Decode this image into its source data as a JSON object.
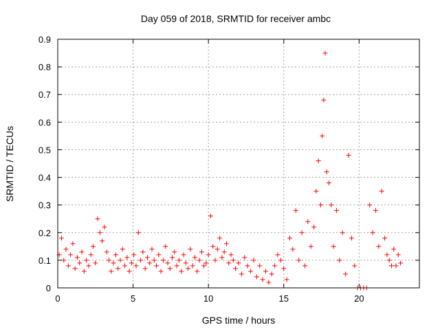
{
  "chart_data": {
    "type": "scatter",
    "title": "Day 059 of 2018, SRMTID for receiver ambc",
    "xlabel": "GPS time / hours",
    "ylabel": "SRMTID / TECUs",
    "xlim": [
      0,
      24
    ],
    "ylim": [
      0,
      0.9
    ],
    "xticks": [
      0,
      5,
      10,
      15,
      20
    ],
    "xtick_labels": [
      "0",
      "5",
      "10",
      "15",
      "20"
    ],
    "yticks": [
      0,
      0.1,
      0.2,
      0.3,
      0.4,
      0.5,
      0.6,
      0.7,
      0.8,
      0.9
    ],
    "ytick_labels": [
      "0",
      "0.1",
      "0.2",
      "0.3",
      "0.4",
      "0.5",
      "0.6",
      "0.7",
      "0.8",
      "0.9"
    ],
    "grid": true,
    "marker": "+",
    "series": [
      {
        "name": "SRMTID",
        "color": "#ff0000",
        "x": [
          0.1,
          0.25,
          0.4,
          0.55,
          0.7,
          0.85,
          1.0,
          1.15,
          1.3,
          1.45,
          1.6,
          1.75,
          1.9,
          2.05,
          2.2,
          2.35,
          2.5,
          2.65,
          2.8,
          2.95,
          3.1,
          3.25,
          3.4,
          3.55,
          3.7,
          3.85,
          4.0,
          4.15,
          4.3,
          4.45,
          4.6,
          4.75,
          4.9,
          5.05,
          5.2,
          5.35,
          5.5,
          5.65,
          5.8,
          5.95,
          6.1,
          6.25,
          6.4,
          6.55,
          6.7,
          6.85,
          7.0,
          7.15,
          7.3,
          7.45,
          7.6,
          7.75,
          7.9,
          8.05,
          8.2,
          8.35,
          8.5,
          8.65,
          8.8,
          8.95,
          9.1,
          9.25,
          9.4,
          9.55,
          9.7,
          9.85,
          10.0,
          10.15,
          10.3,
          10.45,
          10.6,
          10.75,
          10.9,
          11.05,
          11.2,
          11.35,
          11.5,
          11.65,
          11.8,
          12.0,
          12.2,
          12.4,
          12.6,
          12.8,
          13.0,
          13.2,
          13.4,
          13.6,
          13.8,
          14.0,
          14.2,
          14.4,
          14.6,
          14.8,
          15.0,
          15.2,
          15.4,
          15.6,
          15.8,
          16.0,
          16.2,
          16.4,
          16.6,
          16.8,
          17.0,
          17.15,
          17.3,
          17.45,
          17.55,
          17.65,
          17.75,
          17.85,
          18.0,
          18.15,
          18.3,
          18.5,
          18.7,
          18.9,
          19.1,
          19.3,
          19.5,
          19.7,
          19.9,
          20.1,
          20.3,
          20.5,
          20.7,
          20.9,
          21.1,
          21.3,
          21.5,
          21.7,
          21.85,
          22.0,
          22.15,
          22.3,
          22.45,
          22.6,
          22.75
        ],
        "y": [
          0.12,
          0.18,
          0.1,
          0.14,
          0.08,
          0.12,
          0.16,
          0.07,
          0.11,
          0.09,
          0.13,
          0.06,
          0.1,
          0.08,
          0.12,
          0.15,
          0.09,
          0.25,
          0.2,
          0.17,
          0.22,
          0.13,
          0.1,
          0.06,
          0.09,
          0.12,
          0.07,
          0.1,
          0.14,
          0.08,
          0.11,
          0.06,
          0.09,
          0.12,
          0.08,
          0.2,
          0.1,
          0.13,
          0.07,
          0.11,
          0.09,
          0.14,
          0.1,
          0.08,
          0.12,
          0.06,
          0.1,
          0.15,
          0.09,
          0.07,
          0.11,
          0.13,
          0.08,
          0.1,
          0.06,
          0.12,
          0.09,
          0.07,
          0.14,
          0.08,
          0.11,
          0.06,
          0.1,
          0.13,
          0.08,
          0.09,
          0.12,
          0.26,
          0.15,
          0.1,
          0.14,
          0.18,
          0.11,
          0.13,
          0.16,
          0.09,
          0.12,
          0.1,
          0.07,
          0.09,
          0.05,
          0.11,
          0.08,
          0.06,
          0.1,
          0.04,
          0.08,
          0.03,
          0.06,
          0.02,
          0.05,
          0.08,
          0.12,
          0.1,
          0.07,
          0.03,
          0.18,
          0.14,
          0.28,
          0.1,
          0.2,
          0.08,
          0.24,
          0.15,
          0.22,
          0.35,
          0.46,
          0.3,
          0.55,
          0.68,
          0.85,
          0.42,
          0.38,
          0.3,
          0.15,
          0.28,
          0.1,
          0.2,
          0.05,
          0.48,
          0.18,
          0.08,
          0.0,
          0.0,
          0.0,
          0.0,
          0.3,
          0.2,
          0.28,
          0.15,
          0.35,
          0.18,
          0.12,
          0.1,
          0.08,
          0.14,
          0.08,
          0.12,
          0.09
        ]
      }
    ]
  }
}
